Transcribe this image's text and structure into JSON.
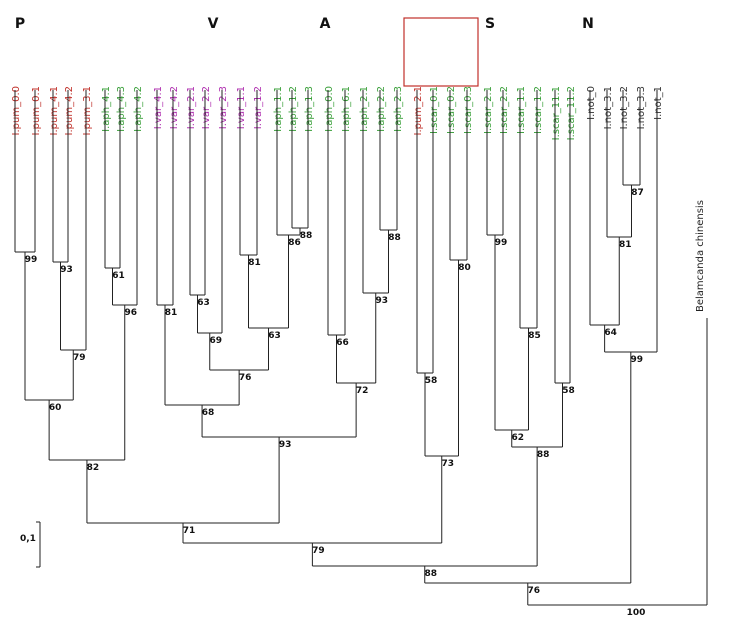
{
  "groups": [
    "P",
    "V",
    "A",
    "S",
    "N"
  ],
  "leaves": [
    {
      "label": "I.pum_0.0",
      "color": "#c0302a"
    },
    {
      "label": "I.pum_0.1",
      "color": "#c0302a"
    },
    {
      "label": "I.pum_4.1",
      "color": "#c0302a"
    },
    {
      "label": "I.pum_4.2",
      "color": "#c0302a"
    },
    {
      "label": "I.pum_3.1",
      "color": "#c0302a"
    },
    {
      "label": "I.aph_4.1",
      "color": "#3aa03a"
    },
    {
      "label": "I.aph_4.3",
      "color": "#3aa03a"
    },
    {
      "label": "I.aph_4.2",
      "color": "#3aa03a"
    },
    {
      "label": "I.var_4.1",
      "color": "#b030b0"
    },
    {
      "label": "I.var_4.2",
      "color": "#b030b0"
    },
    {
      "label": "I.var_2.1",
      "color": "#b030b0"
    },
    {
      "label": "I.var_2.2",
      "color": "#b030b0"
    },
    {
      "label": "I.var_2.3",
      "color": "#b030b0"
    },
    {
      "label": "I.var_1.1",
      "color": "#b030b0"
    },
    {
      "label": "I.var_1.2",
      "color": "#b030b0"
    },
    {
      "label": "I.aph_1.1",
      "color": "#3aa03a"
    },
    {
      "label": "I.aph_1.2",
      "color": "#3aa03a"
    },
    {
      "label": "I.aph_1.3",
      "color": "#3aa03a"
    },
    {
      "label": "I.aph_0.0",
      "color": "#3aa03a"
    },
    {
      "label": "I.aph_6.1",
      "color": "#3aa03a"
    },
    {
      "label": "I.aph_2.1",
      "color": "#3aa03a"
    },
    {
      "label": "I.aph_2.2",
      "color": "#3aa03a"
    },
    {
      "label": "I.aph_2.3",
      "color": "#3aa03a"
    },
    {
      "label": "I.pum_2.1",
      "color": "#c0302a"
    },
    {
      "label": "I.scar_0.1",
      "color": "#3aa03a"
    },
    {
      "label": "I.scar_0.2",
      "color": "#3aa03a"
    },
    {
      "label": "I.scar_0.3",
      "color": "#3aa03a"
    },
    {
      "label": "I.scar_2.1",
      "color": "#3aa03a"
    },
    {
      "label": "I.scar_2.2",
      "color": "#3aa03a"
    },
    {
      "label": "I.scar_1.1",
      "color": "#3aa03a"
    },
    {
      "label": "I.scar_1.2",
      "color": "#3aa03a"
    },
    {
      "label": "I.scar_11.1",
      "color": "#3aa03a"
    },
    {
      "label": "I.scar_11.2",
      "color": "#3aa03a"
    },
    {
      "label": "I.not_0",
      "color": "#333333"
    },
    {
      "label": "I.not_3.1",
      "color": "#333333"
    },
    {
      "label": "I.not_3.2",
      "color": "#333333"
    },
    {
      "label": "I.not_3.3",
      "color": "#333333"
    },
    {
      "label": "I.not_1",
      "color": "#333333"
    }
  ],
  "outgroup": "Belamcanda chinensis",
  "supports": [
    99,
    93,
    79,
    61,
    96,
    60,
    82,
    81,
    63,
    69,
    81,
    88,
    86,
    63,
    76,
    68,
    66,
    88,
    93,
    72,
    93,
    71,
    80,
    58,
    73,
    79,
    99,
    85,
    58,
    62,
    88,
    88,
    87,
    81,
    64,
    99,
    76,
    100
  ],
  "scale": "0,1"
}
